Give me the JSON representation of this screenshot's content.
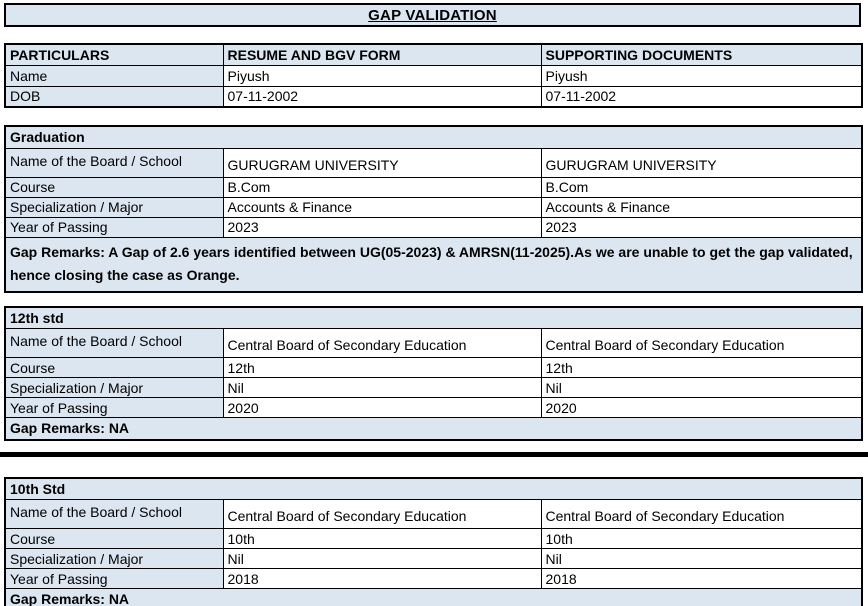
{
  "title": "GAP VALIDATION",
  "colors": {
    "cell_fill": "#dce6f1",
    "border": "#000000",
    "background": "#ffffff"
  },
  "header_table": {
    "columns": [
      "PARTICULARS",
      "RESUME AND BGV FORM",
      "SUPPORTING DOCUMENTS"
    ],
    "rows": [
      {
        "label": "Name",
        "resume": "Piyush",
        "supporting": "Piyush"
      },
      {
        "label": "DOB",
        "resume": "07-11-2002",
        "supporting": "07-11-2002"
      }
    ]
  },
  "sections": [
    {
      "heading": "Graduation",
      "rows": [
        {
          "label": "Name of the Board / School",
          "resume": "GURUGRAM UNIVERSITY",
          "supporting": "GURUGRAM UNIVERSITY"
        },
        {
          "label": "Course",
          "resume": "B.Com",
          "supporting": "B.Com"
        },
        {
          "label": "Specialization / Major",
          "resume": "Accounts & Finance",
          "supporting": "Accounts & Finance"
        },
        {
          "label": "Year of Passing",
          "resume": "2023",
          "supporting": "2023"
        }
      ],
      "gap_remarks": "Gap Remarks: A Gap of 2.6 years identified between UG(05-2023) & AMRSN(11-2025).As we are unable to get the gap validated, hence closing the case as Orange."
    },
    {
      "heading": "12th std",
      "rows": [
        {
          "label": "Name of the Board / School",
          "resume": "Central Board of Secondary Education",
          "supporting": "Central Board of Secondary Education"
        },
        {
          "label": "Course",
          "resume": "12th",
          "supporting": "12th"
        },
        {
          "label": "Specialization / Major",
          "resume": "Nil",
          "supporting": "Nil"
        },
        {
          "label": "Year of Passing",
          "resume": "2020",
          "supporting": "2020"
        }
      ],
      "gap_remarks": "Gap Remarks: NA"
    },
    {
      "heading": "10th Std",
      "rows": [
        {
          "label": "Name of the Board / School",
          "resume": "Central Board of Secondary Education",
          "supporting": "Central Board of Secondary Education"
        },
        {
          "label": "Course",
          "resume": "10th",
          "supporting": "10th"
        },
        {
          "label": "Specialization / Major",
          "resume": "Nil",
          "supporting": "Nil"
        },
        {
          "label": "Year of Passing",
          "resume": "2018",
          "supporting": "2018"
        }
      ],
      "gap_remarks": "Gap Remarks: NA"
    }
  ]
}
